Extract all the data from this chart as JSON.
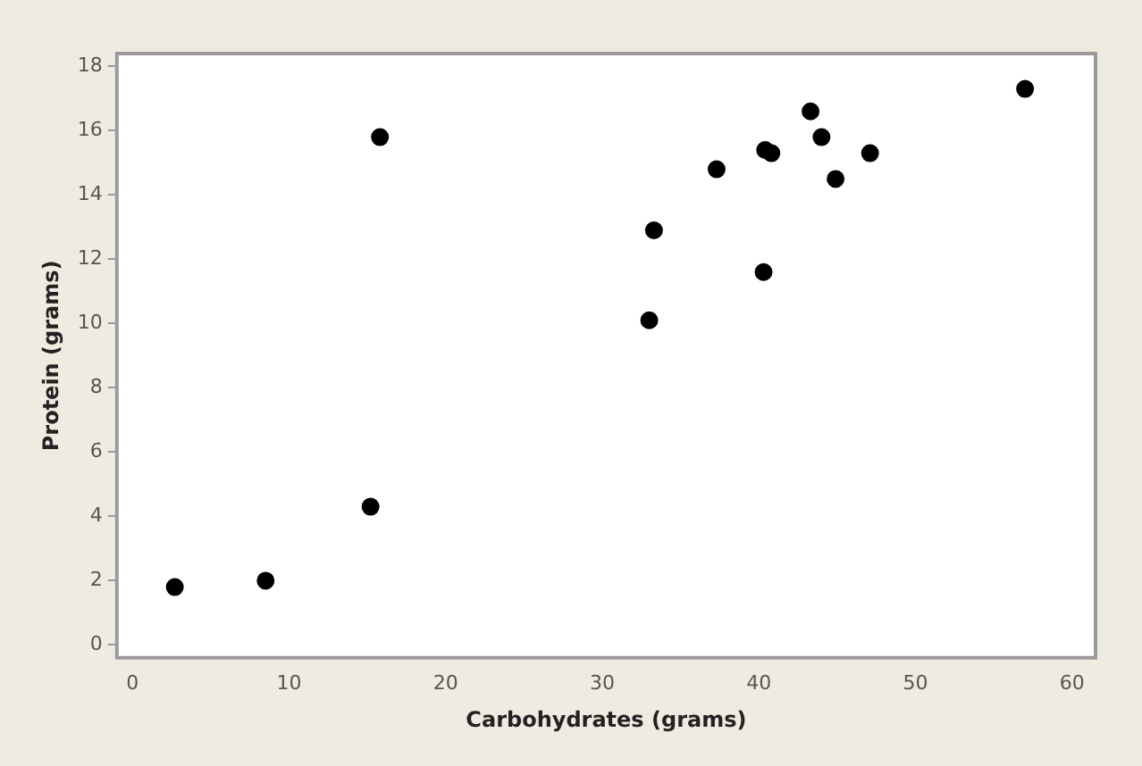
{
  "chart_data": {
    "type": "scatter",
    "xlabel": "Carbohydrates (grams)",
    "ylabel": "Protein (grams)",
    "x": [
      2.7,
      8.5,
      15.2,
      15.8,
      33,
      33.3,
      37.3,
      40.3,
      40.4,
      40.8,
      43.3,
      44,
      44.9,
      47.1,
      57
    ],
    "series": [
      {
        "color": "#000000",
        "values": [
          1.8,
          2.0,
          4.3,
          15.8,
          10.1,
          12.9,
          14.8,
          11.6,
          15.4,
          15.3,
          16.6,
          15.8,
          14.5,
          15.3,
          17.3
        ]
      }
    ],
    "xlim": [
      -1,
      61.5
    ],
    "xticks": [
      0,
      10,
      20,
      30,
      40,
      50,
      60
    ],
    "ylim": [
      -0.4,
      18.4
    ],
    "yticks": [
      0,
      2,
      4,
      6,
      8,
      10,
      12,
      14,
      16,
      18
    ],
    "grid": false,
    "legend": false,
    "marker": "circle"
  }
}
